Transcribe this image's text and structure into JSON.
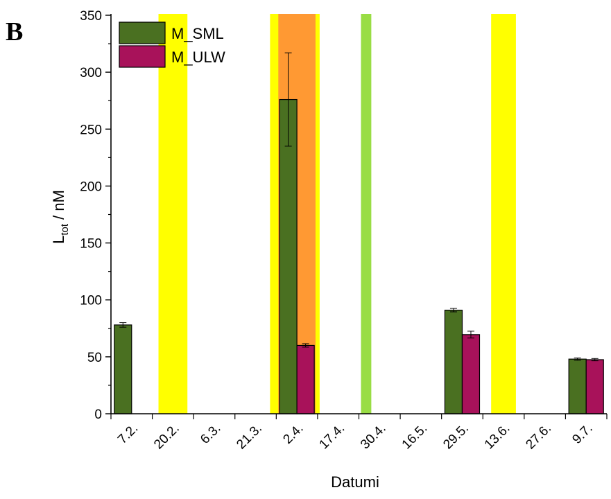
{
  "panel_label": "B",
  "chart_data": {
    "type": "bar",
    "title": "",
    "xlabel": "Datumi",
    "ylabel": {
      "main": "L",
      "sub": "tot",
      "rest": " / nM"
    },
    "ylim": [
      0,
      350
    ],
    "yticks": [
      0,
      50,
      100,
      150,
      200,
      250,
      300,
      350
    ],
    "categories": [
      "7.2.",
      "20.2.",
      "6.3.",
      "21.3.",
      "2.4.",
      "17.4.",
      "30.4.",
      "16.5.",
      "29.5.",
      "13.6.",
      "27.6.",
      "9.7."
    ],
    "grid": false,
    "legend_position": "top-left",
    "series": [
      {
        "name": "M_SML",
        "color": "#4a7021",
        "values": [
          78,
          null,
          null,
          null,
          276,
          null,
          null,
          null,
          91,
          null,
          null,
          48
        ],
        "errors": [
          2,
          null,
          null,
          null,
          41,
          null,
          null,
          null,
          1.5,
          null,
          null,
          1
        ]
      },
      {
        "name": "M_ULW",
        "color": "#a8125a",
        "values": [
          null,
          null,
          null,
          null,
          60,
          null,
          null,
          null,
          69.5,
          null,
          null,
          47.5
        ],
        "errors": [
          null,
          null,
          null,
          null,
          1.5,
          null,
          null,
          null,
          3,
          null,
          null,
          1
        ]
      }
    ],
    "highlight_bands": [
      {
        "from_category": 1,
        "span": [
          -0.35,
          0.35
        ],
        "color": "#ffff00"
      },
      {
        "from_category": 4,
        "span": [
          -0.65,
          0.55
        ],
        "color": "#ffff00"
      },
      {
        "from_category": 4,
        "span": [
          -0.45,
          0.45
        ],
        "color": "#ff9933"
      },
      {
        "from_category": 6,
        "span": [
          -0.45,
          -0.2
        ],
        "color": "#99dd44"
      },
      {
        "from_category": 9,
        "span": [
          -0.3,
          0.3
        ],
        "color": "#ffff00"
      }
    ]
  }
}
